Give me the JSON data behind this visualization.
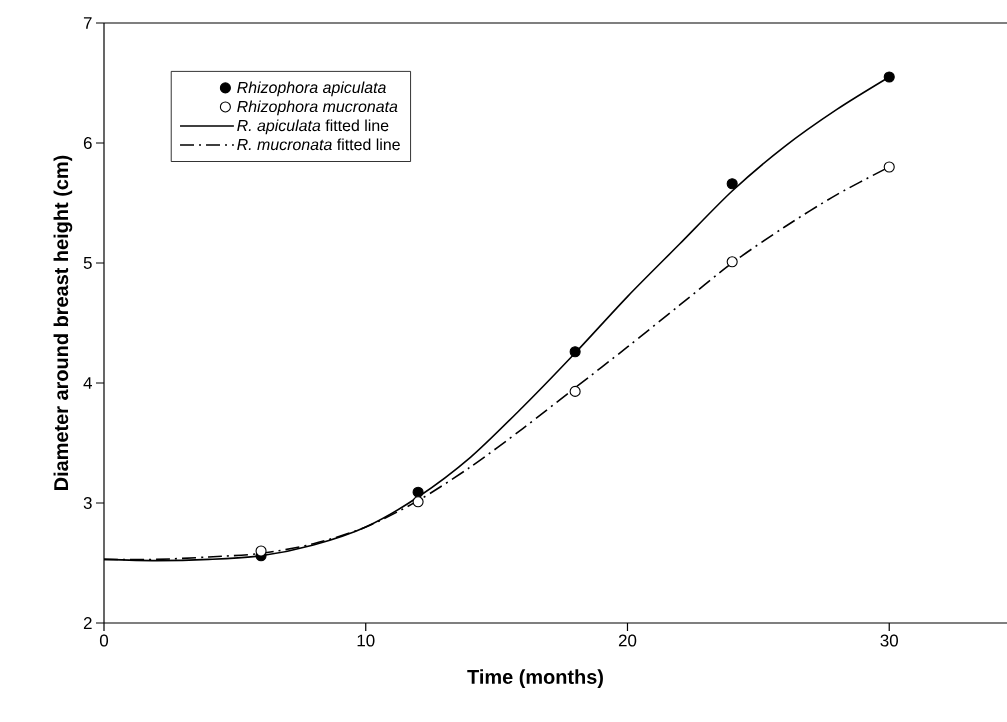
{
  "chart_data": {
    "type": "scatter",
    "xlabel": "Time (months)",
    "ylabel": "Diameter around breast height (cm)",
    "xlim": [
      0,
      34.5
    ],
    "ylim": [
      2,
      7
    ],
    "xticks": [
      0,
      10,
      20,
      30
    ],
    "yticks": [
      2,
      3,
      4,
      5,
      6,
      7
    ],
    "grid": false,
    "legend": "top left",
    "series": [
      {
        "name": "*Rhizophora apiculata*",
        "marker": "circle",
        "color": "#000000",
        "x": [
          6,
          12,
          18,
          24,
          30
        ],
        "values": [
          2.56,
          3.09,
          4.26,
          5.66,
          6.55
        ]
      },
      {
        "name": "*Rhizophora mucronata*",
        "marker": "circle",
        "color": "#000000",
        "x": [
          6,
          12,
          18,
          24,
          30
        ],
        "values": [
          2.6,
          3.01,
          3.93,
          5.01,
          5.8
        ]
      },
      {
        "name": "*R. apiculata* fitted line",
        "type": "line",
        "marker": "none",
        "line_style": "solid",
        "color": "#000000",
        "x": [
          0,
          2,
          4,
          6,
          8,
          10,
          12,
          14,
          16,
          18,
          20,
          22,
          24,
          26,
          28,
          30
        ],
        "values": [
          2.53,
          2.52,
          2.53,
          2.56,
          2.65,
          2.8,
          3.05,
          3.38,
          3.8,
          4.25,
          4.72,
          5.16,
          5.6,
          5.97,
          6.28,
          6.55
        ]
      },
      {
        "name": "*R. mucronata* fitted line",
        "type": "line",
        "marker": "none",
        "line_style": "dashed",
        "color": "#000000",
        "x": [
          0,
          2,
          4,
          6,
          8,
          10,
          12,
          14,
          16,
          18,
          20,
          22,
          24,
          26,
          28,
          30
        ],
        "values": [
          2.53,
          2.53,
          2.55,
          2.58,
          2.66,
          2.8,
          3.02,
          3.3,
          3.62,
          3.96,
          4.3,
          4.65,
          5.0,
          5.3,
          5.57,
          5.8
        ]
      }
    ]
  }
}
